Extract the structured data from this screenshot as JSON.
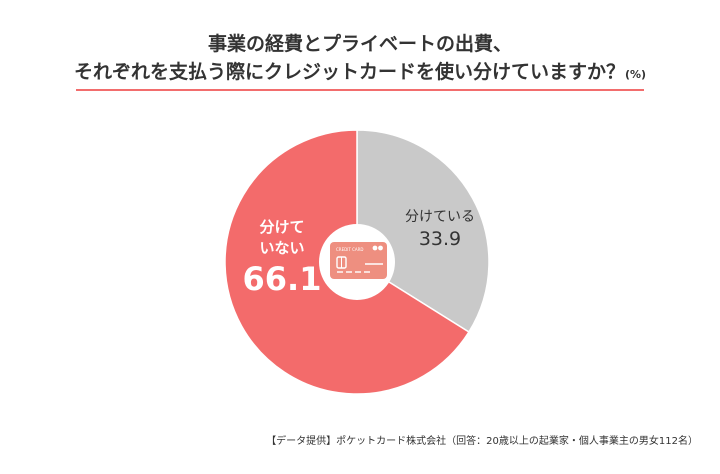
{
  "title": {
    "line1": "事業の経費とプライベートの出費、",
    "line2": "それぞれを支払う際にクレジットカードを使い分けていますか？",
    "unit": "(%)"
  },
  "chart_data": {
    "type": "pie",
    "donut": true,
    "slices": [
      {
        "label_line1": "分けている",
        "label_line2": "",
        "value": 33.9,
        "value_text": "33.9",
        "color": "#c9c9c9"
      },
      {
        "label_line1": "分けて",
        "label_line2": "いない",
        "value": 66.1,
        "value_text": "66.1",
        "color": "#f36b6b"
      }
    ]
  },
  "center_icon": {
    "name": "credit-card-icon",
    "text": "CREDIT CARD",
    "color": "#ee8f80"
  },
  "source": "【データ提供】ポケットカード株式会社（回答：20歳以上の起業家・個人事業主の男女112名）"
}
